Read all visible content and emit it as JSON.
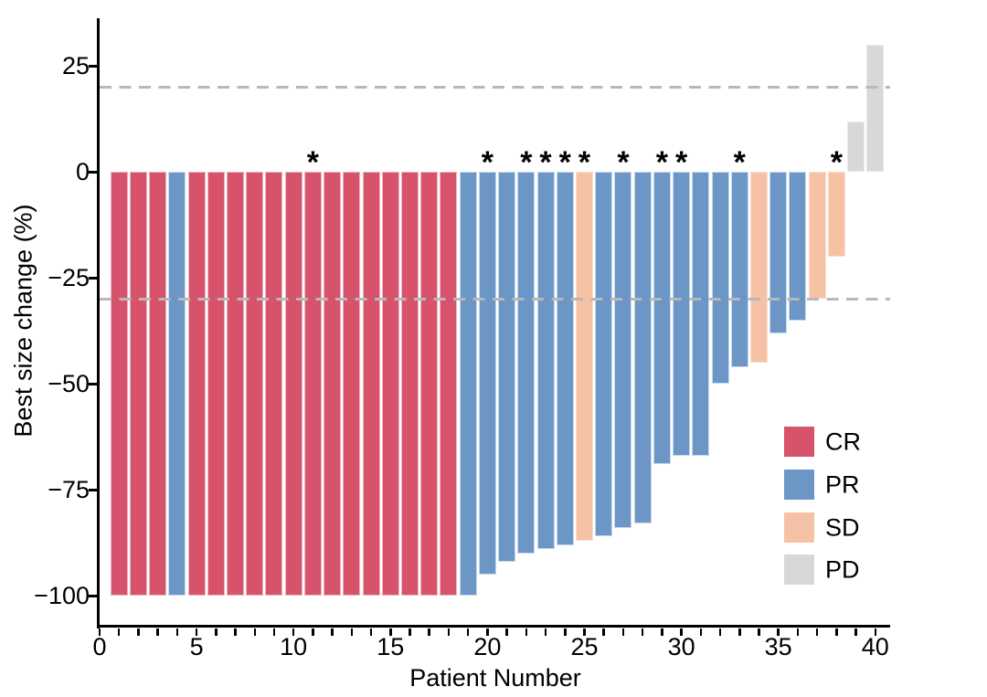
{
  "chart_data": {
    "type": "bar",
    "subtype": "waterfall-best-response",
    "title": "",
    "xlabel": "Patient Number",
    "ylabel": "Best size change (%)",
    "xlim": [
      0,
      41
    ],
    "ylim": [
      -107,
      36
    ],
    "grid": "off",
    "x_major_ticks": [
      {
        "value": 0,
        "label": "0"
      },
      {
        "value": 5,
        "label": "5"
      },
      {
        "value": 10,
        "label": "10"
      },
      {
        "value": 15,
        "label": "15"
      },
      {
        "value": 20,
        "label": "20"
      },
      {
        "value": 25,
        "label": "25"
      },
      {
        "value": 30,
        "label": "30"
      },
      {
        "value": 35,
        "label": "35"
      },
      {
        "value": 40,
        "label": "40"
      }
    ],
    "x_minor_ticks_every_patient": true,
    "y_ticks": [
      {
        "value": 25,
        "label": "25"
      },
      {
        "value": 0,
        "label": "0"
      },
      {
        "value": -25,
        "label": "−25"
      },
      {
        "value": -50,
        "label": "−50"
      },
      {
        "value": -75,
        "label": "−75"
      },
      {
        "value": -100,
        "label": "−100"
      }
    ],
    "reference_lines": [
      {
        "value": 20,
        "style": "dashed"
      },
      {
        "value": -30,
        "style": "dashed"
      }
    ],
    "colors": {
      "CR": {
        "fill": "#D7536B",
        "edge": "#E9B6C2"
      },
      "PR": {
        "fill": "#6B96C6",
        "edge": "#C9D9EC"
      },
      "SD": {
        "fill": "#F6C2A6",
        "edge": "#FADFD0"
      },
      "PD": {
        "fill": "#D8D8D8",
        "edge": "#E9E9E9"
      },
      "reference_line": "#B8B8B8",
      "axis": "#000000",
      "star": "#000000"
    },
    "star_marker": "*",
    "legend": {
      "position": "inside-right-lower",
      "items": [
        {
          "label": "CR"
        },
        {
          "label": "PR"
        },
        {
          "label": "SD"
        },
        {
          "label": "PD"
        }
      ]
    },
    "bars": [
      {
        "patient": 1,
        "value": -100,
        "response": "CR",
        "star": false
      },
      {
        "patient": 2,
        "value": -100,
        "response": "CR",
        "star": false
      },
      {
        "patient": 3,
        "value": -100,
        "response": "CR",
        "star": false
      },
      {
        "patient": 4,
        "value": -100,
        "response": "PR",
        "star": false
      },
      {
        "patient": 5,
        "value": -100,
        "response": "CR",
        "star": false
      },
      {
        "patient": 6,
        "value": -100,
        "response": "CR",
        "star": false
      },
      {
        "patient": 7,
        "value": -100,
        "response": "CR",
        "star": false
      },
      {
        "patient": 8,
        "value": -100,
        "response": "CR",
        "star": false
      },
      {
        "patient": 9,
        "value": -100,
        "response": "CR",
        "star": false
      },
      {
        "patient": 10,
        "value": -100,
        "response": "CR",
        "star": false
      },
      {
        "patient": 11,
        "value": -100,
        "response": "CR",
        "star": true
      },
      {
        "patient": 12,
        "value": -100,
        "response": "CR",
        "star": false
      },
      {
        "patient": 13,
        "value": -100,
        "response": "CR",
        "star": false
      },
      {
        "patient": 14,
        "value": -100,
        "response": "CR",
        "star": false
      },
      {
        "patient": 15,
        "value": -100,
        "response": "CR",
        "star": false
      },
      {
        "patient": 16,
        "value": -100,
        "response": "CR",
        "star": false
      },
      {
        "patient": 17,
        "value": -100,
        "response": "CR",
        "star": false
      },
      {
        "patient": 18,
        "value": -100,
        "response": "CR",
        "star": false
      },
      {
        "patient": 19,
        "value": -100,
        "response": "PR",
        "star": false
      },
      {
        "patient": 20,
        "value": -95,
        "response": "PR",
        "star": true
      },
      {
        "patient": 21,
        "value": -92,
        "response": "PR",
        "star": false
      },
      {
        "patient": 22,
        "value": -90,
        "response": "PR",
        "star": true
      },
      {
        "patient": 23,
        "value": -89,
        "response": "PR",
        "star": true
      },
      {
        "patient": 24,
        "value": -88,
        "response": "PR",
        "star": true
      },
      {
        "patient": 25,
        "value": -87,
        "response": "SD",
        "star": true
      },
      {
        "patient": 26,
        "value": -86,
        "response": "PR",
        "star": false
      },
      {
        "patient": 27,
        "value": -84,
        "response": "PR",
        "star": true
      },
      {
        "patient": 28,
        "value": -83,
        "response": "PR",
        "star": false
      },
      {
        "patient": 29,
        "value": -69,
        "response": "PR",
        "star": true
      },
      {
        "patient": 30,
        "value": -67,
        "response": "PR",
        "star": true
      },
      {
        "patient": 31,
        "value": -67,
        "response": "PR",
        "star": false
      },
      {
        "patient": 32,
        "value": -50,
        "response": "PR",
        "star": false
      },
      {
        "patient": 33,
        "value": -46,
        "response": "PR",
        "star": true
      },
      {
        "patient": 34,
        "value": -45,
        "response": "SD",
        "star": false
      },
      {
        "patient": 35,
        "value": -38,
        "response": "PR",
        "star": false
      },
      {
        "patient": 36,
        "value": -35,
        "response": "PR",
        "star": false
      },
      {
        "patient": 37,
        "value": -30,
        "response": "SD",
        "star": false
      },
      {
        "patient": 38,
        "value": -20,
        "response": "SD",
        "star": true
      },
      {
        "patient": 39,
        "value": 12,
        "response": "PD",
        "star": false
      },
      {
        "patient": 40,
        "value": 30,
        "response": "PD",
        "star": false
      }
    ]
  }
}
